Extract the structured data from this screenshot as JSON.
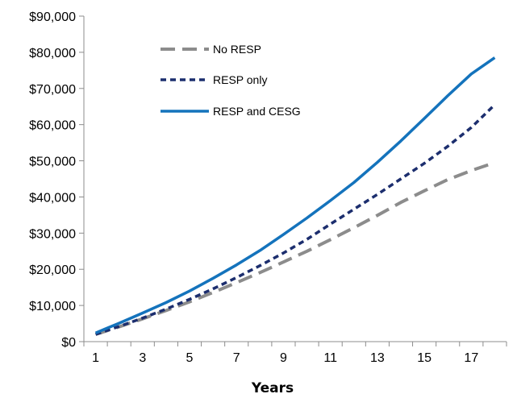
{
  "chart_data": {
    "type": "line",
    "title": "",
    "xlabel": "Years",
    "ylabel": "",
    "x": [
      1,
      2,
      3,
      4,
      5,
      6,
      7,
      8,
      9,
      10,
      11,
      12,
      13,
      14,
      15,
      16,
      17,
      18
    ],
    "x_tick_labels": [
      "1",
      "3",
      "5",
      "7",
      "9",
      "11",
      "13",
      "15",
      "17"
    ],
    "y_tick_labels": [
      "$0",
      "$10,000",
      "$20,000",
      "$30,000",
      "$40,000",
      "$50,000",
      "$60,000",
      "$70,000",
      "$80,000",
      "$90,000"
    ],
    "ylim": [
      0,
      90000
    ],
    "xlim": [
      0.5,
      18.5
    ],
    "grid": false,
    "legend_position": "top-left",
    "series": [
      {
        "name": "No RESP",
        "color": "#8c8c8c",
        "dash": "long-dash",
        "values": [
          2000,
          4100,
          6300,
          8600,
          11000,
          13600,
          16300,
          19100,
          22000,
          25000,
          28200,
          31500,
          34900,
          38500,
          41700,
          44800,
          47300,
          49500
        ]
      },
      {
        "name": "RESP only",
        "color": "#1c2e6e",
        "dash": "short-dash",
        "values": [
          2000,
          4200,
          6500,
          9000,
          11700,
          14600,
          17700,
          21000,
          24500,
          28300,
          32500,
          36600,
          40700,
          45000,
          49300,
          54000,
          59200,
          65500
        ]
      },
      {
        "name": "RESP and CESG",
        "color": "#1473bc",
        "dash": "solid",
        "values": [
          2400,
          5100,
          7900,
          10800,
          14000,
          17500,
          21200,
          25200,
          29600,
          34200,
          39000,
          44000,
          49600,
          55500,
          61700,
          68000,
          74000,
          78500
        ]
      }
    ]
  }
}
